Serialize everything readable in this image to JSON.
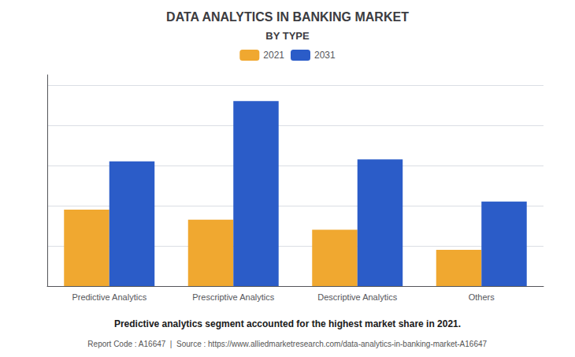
{
  "chart_data": {
    "type": "bar",
    "title": "DATA ANALYTICS IN BANKING MARKET",
    "subtitle": "BY TYPE",
    "categories": [
      "Predictive Analytics",
      "Prescriptive Analytics",
      "Descriptive Analytics",
      "Others"
    ],
    "series": [
      {
        "name": "2021",
        "color": "#F0A830",
        "values": [
          0.38,
          0.33,
          0.28,
          0.18
        ]
      },
      {
        "name": "2031",
        "color": "#2B5CC8",
        "values": [
          0.62,
          0.92,
          0.63,
          0.42
        ]
      }
    ],
    "ylim": [
      0,
      1.05
    ],
    "yticks": [
      0,
      0.2,
      0.4,
      0.6,
      0.8,
      1.0
    ],
    "grid": true,
    "legend": "top",
    "tick_labels": "x",
    "annotations": [
      "Predictive analytics segment accounted for the highest market share in 2021.",
      "Report Code : A16647  |  Source : https://www.alliedmarketresearch.com/data-analytics-in-banking-market-A16647"
    ]
  }
}
